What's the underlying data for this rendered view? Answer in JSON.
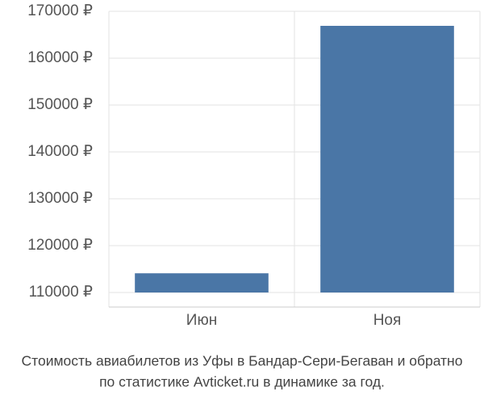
{
  "chart_data": {
    "type": "bar",
    "title": [
      "Стоимость авиабилетов из Уфы в Бандар-Сери-Бегаван и обратно",
      "по статистике Avticket.ru в динамике за год."
    ],
    "categories": [
      "Июн",
      "Ноя"
    ],
    "values": [
      114100,
      166900
    ],
    "color": "#4a76a6",
    "ylim": [
      110000,
      170000
    ],
    "yticks": [
      {
        "value": 110000,
        "label": "110000 ₽"
      },
      {
        "value": 120000,
        "label": "120000 ₽"
      },
      {
        "value": 130000,
        "label": "130000 ₽"
      },
      {
        "value": 140000,
        "label": "140000 ₽"
      },
      {
        "value": 150000,
        "label": "150000 ₽"
      },
      {
        "value": 160000,
        "label": "160000 ₽"
      },
      {
        "value": 170000,
        "label": "170000 ₽"
      }
    ],
    "grid": true
  }
}
